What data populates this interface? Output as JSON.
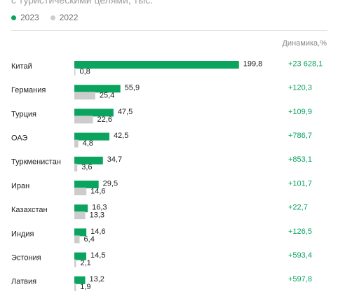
{
  "header": {
    "subtitle": "с туристическими целями, тыс."
  },
  "legend": [
    {
      "label": "2023",
      "color": "#0aa45f"
    },
    {
      "label": "2022",
      "color": "#cccccc"
    }
  ],
  "change_column_header": "Динамика,%",
  "chart_data": {
    "type": "bar",
    "orientation": "horizontal",
    "categories": [
      "Китай",
      "Германия",
      "Турция",
      "ОАЭ",
      "Туркменистан",
      "Иран",
      "Казахстан",
      "Индия",
      "Эстония",
      "Латвия"
    ],
    "series": [
      {
        "name": "2023",
        "values": [
          199.8,
          55.9,
          47.5,
          42.5,
          34.7,
          29.5,
          16.3,
          14.6,
          14.5,
          13.2
        ],
        "labels": [
          "199,8",
          "55,9",
          "47,5",
          "42,5",
          "34,7",
          "29,5",
          "16,3",
          "14,6",
          "14,5",
          "13,2"
        ],
        "color": "#0aa45f"
      },
      {
        "name": "2022",
        "values": [
          0.8,
          25.4,
          22.6,
          4.8,
          3.6,
          14.6,
          13.3,
          6.4,
          2.1,
          1.9
        ],
        "labels": [
          "0,8",
          "25,4",
          "22,6",
          "4,8",
          "3,6",
          "14,6",
          "13,3",
          "6,4",
          "2,1",
          "1,9"
        ],
        "color": "#cccccc"
      }
    ],
    "change": [
      "+23 628,1",
      "+120,3",
      "+109,9",
      "+786,7",
      "+853,1",
      "+101,7",
      "+22,7",
      "+126,5",
      "+593,4",
      "+597,8"
    ],
    "change_color": "#0aa45f",
    "grid": false
  }
}
